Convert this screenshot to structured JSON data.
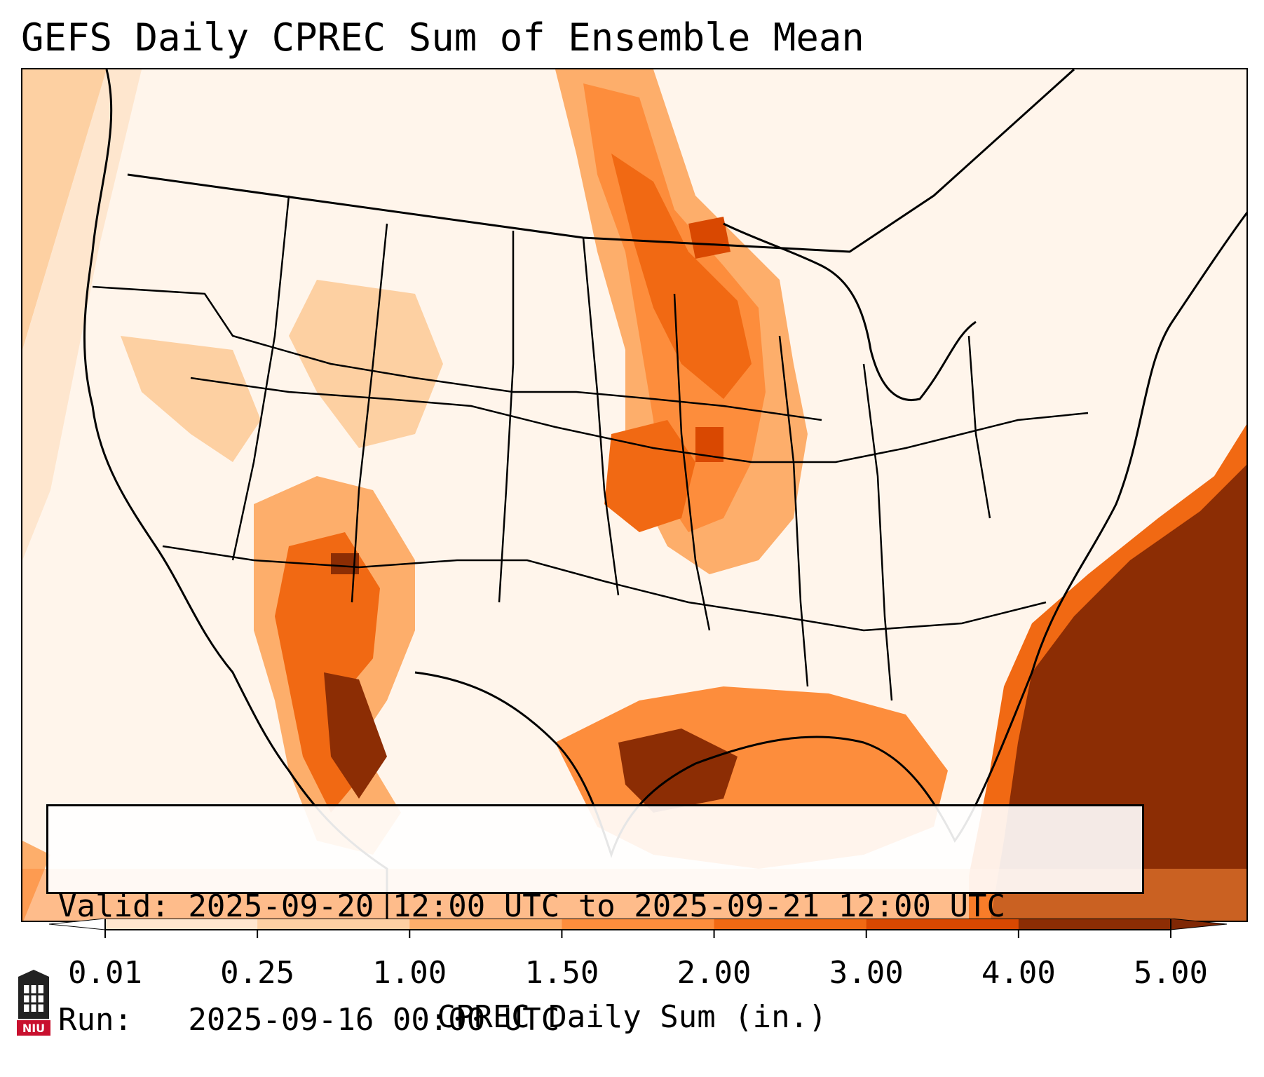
{
  "title": "GEFS Daily CPREC Sum of Ensemble Mean",
  "info": {
    "valid_line": "Valid: 2025-09-20 12:00 UTC to 2025-09-21 12:00 UTC",
    "run_line": "Run:   2025-09-16 00:00 UTC"
  },
  "colorbar": {
    "label": "CPREC Daily Sum (in.)",
    "ticks": [
      "0.01",
      "0.25",
      "1.00",
      "1.50",
      "2.00",
      "3.00",
      "4.00",
      "5.00"
    ],
    "colors": [
      "#fff5eb",
      "#fee6ce",
      "#fdd0a2",
      "#fdae6b",
      "#fd8d3c",
      "#f16913",
      "#d94801",
      "#8c2d04"
    ],
    "under_color": "#ffffff",
    "over_color": "#7f2704"
  },
  "logo": {
    "text": "NIU",
    "color": "#c8102e"
  }
}
